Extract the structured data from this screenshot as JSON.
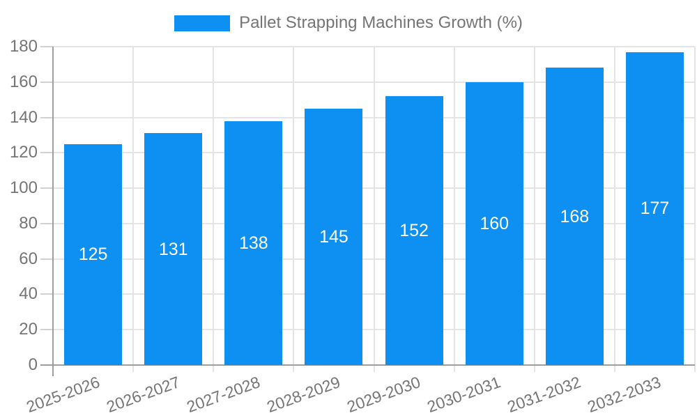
{
  "legend": {
    "label": "Pallet Strapping Machines Growth (%)"
  },
  "chart_data": {
    "type": "bar",
    "title": "Pallet Strapping Machines Growth (%)",
    "categories": [
      "2025-2026",
      "2026-2027",
      "2027-2028",
      "2028-2029",
      "2029-2030",
      "2030-2031",
      "2031-2032",
      "2032-2033"
    ],
    "values": [
      125,
      131,
      138,
      145,
      152,
      160,
      168,
      177
    ],
    "xlabel": "",
    "ylabel": "",
    "ylim": [
      0,
      180
    ],
    "ytick_step": 20,
    "grid": true,
    "legend_position": "top",
    "colors": {
      "bar": "#0d90f2",
      "value_label": "#ffffff",
      "axis_text": "#757575",
      "gridline": "#e4e4e4",
      "axis_line": "#9e9e9e"
    }
  }
}
